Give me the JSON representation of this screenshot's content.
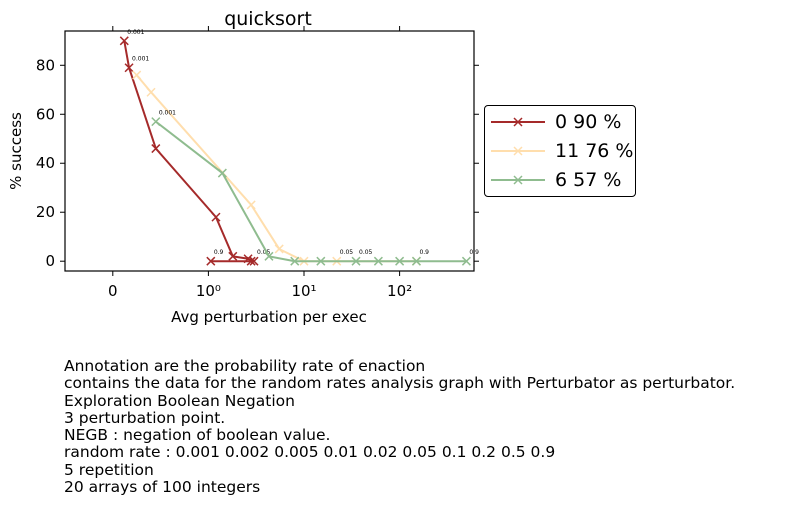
{
  "colors": {
    "axis": "#000000",
    "background": "#ffffff"
  },
  "chart_data": {
    "type": "line",
    "title": "quicksort",
    "xlabel": "Avg perturbation per exec",
    "ylabel": "% success",
    "x_scale": "symlog",
    "xlim": [
      -0.5,
      600
    ],
    "ylim": [
      -4,
      94
    ],
    "x_ticks": [
      {
        "value": 0,
        "label": "0"
      },
      {
        "value": 1,
        "label": "10⁰"
      },
      {
        "value": 10,
        "label": "10¹"
      },
      {
        "value": 100,
        "label": "10²"
      }
    ],
    "y_ticks": [
      0,
      20,
      40,
      60,
      80
    ],
    "grid": false,
    "legend_position": "outside-right",
    "series": [
      {
        "name": "0 90 %",
        "color": "#a52a2a",
        "marker": "x",
        "points": [
          {
            "x": 0.12,
            "y": 90,
            "label": "0.001"
          },
          {
            "x": 0.17,
            "y": 79,
            "label": "0.001"
          },
          {
            "x": 0.45,
            "y": 46,
            "label": ""
          },
          {
            "x": 1.2,
            "y": 18,
            "label": ""
          },
          {
            "x": 1.8,
            "y": 2,
            "label": ""
          },
          {
            "x": 2.6,
            "y": 1,
            "label": ""
          },
          {
            "x": 3.0,
            "y": 0,
            "label": "0.05"
          },
          {
            "x": 2.8,
            "y": 0,
            "label": ""
          },
          {
            "x": 1.06,
            "y": 0,
            "label": "0.9"
          }
        ]
      },
      {
        "name": "11 76 %",
        "color": "#ffdead",
        "marker": "x",
        "points": [
          {
            "x": 0.25,
            "y": 76,
            "label": ""
          },
          {
            "x": 0.4,
            "y": 69,
            "label": ""
          },
          {
            "x": 2.8,
            "y": 23,
            "label": ""
          },
          {
            "x": 5.5,
            "y": 5,
            "label": ""
          },
          {
            "x": 10,
            "y": 0,
            "label": ""
          },
          {
            "x": 22,
            "y": 0,
            "label": "0.05"
          },
          {
            "x": 150,
            "y": 0,
            "label": "0.9"
          }
        ]
      },
      {
        "name": "6 57 %",
        "color": "#8fbc8f",
        "marker": "x",
        "points": [
          {
            "x": 0.45,
            "y": 57,
            "label": "0.001"
          },
          {
            "x": 1.4,
            "y": 36,
            "label": ""
          },
          {
            "x": 4.3,
            "y": 2,
            "label": ""
          },
          {
            "x": 8,
            "y": 0,
            "label": ""
          },
          {
            "x": 15,
            "y": 0,
            "label": ""
          },
          {
            "x": 35,
            "y": 0,
            "label": "0.05"
          },
          {
            "x": 60,
            "y": 0,
            "label": ""
          },
          {
            "x": 100,
            "y": 0,
            "label": ""
          },
          {
            "x": 150,
            "y": 0,
            "label": ""
          },
          {
            "x": 500,
            "y": 0,
            "label": "0.9"
          }
        ]
      }
    ]
  },
  "notes": [
    "Annotation are the probability rate of enaction",
    "contains the data for the random rates analysis graph with Perturbator as perturbator.",
    "Exploration Boolean Negation",
    "3 perturbation point.",
    "NEGB : negation of boolean value.",
    "random rate : 0.001 0.002 0.005 0.01 0.02 0.05 0.1 0.2 0.5 0.9",
    "5 repetition",
    "20 arrays of 100 integers"
  ]
}
